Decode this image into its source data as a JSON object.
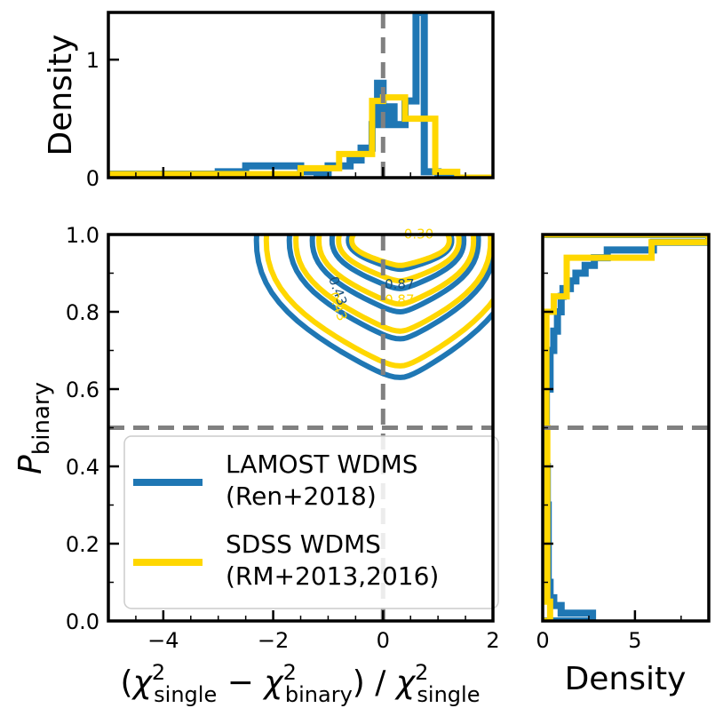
{
  "chart_data": [
    {
      "panel": "top-histogram",
      "type": "histogram",
      "xlim": [
        -5,
        2
      ],
      "ylim": [
        0,
        1.4
      ],
      "ylabel": "Density",
      "yticks": [
        0,
        1
      ],
      "ytick_labels": [
        "0",
        "1"
      ],
      "series": [
        {
          "name": "LAMOST WDMS (Ren+2018)",
          "color": "#1f77b4",
          "edges": [
            -5.0,
            -4.0,
            -3.0,
            -2.5,
            -1.5,
            -1.2,
            -1.0,
            -0.6,
            -0.4,
            -0.2,
            -0.1,
            0.0,
            0.1,
            0.2,
            0.4,
            0.6,
            0.75,
            1.0,
            1.4
          ],
          "density": [
            0.03,
            0.03,
            0.05,
            0.1,
            0.05,
            0.03,
            0.1,
            0.15,
            0.25,
            0.45,
            0.8,
            0.45,
            0.6,
            0.45,
            0.65,
            1.4,
            0.05,
            0.0
          ]
        },
        {
          "name": "SDSS WDMS (RM+2013,2016)",
          "color": "#ffd700",
          "edges": [
            -5.0,
            -1.5,
            -0.8,
            -0.2,
            0.0,
            0.4,
            0.95,
            1.35,
            2.0
          ],
          "density": [
            0.03,
            0.08,
            0.2,
            0.65,
            0.68,
            0.5,
            0.05,
            0.0
          ]
        }
      ],
      "vline": 0
    },
    {
      "panel": "main-contour",
      "type": "contour",
      "xlim": [
        -5,
        2
      ],
      "ylim": [
        0,
        1.0
      ],
      "xlabel": "(χ²_single − χ²_binary) / χ²_single",
      "ylabel": "P_binary",
      "xticks": [
        -4,
        -2,
        0,
        2
      ],
      "xtick_labels": [
        "−4",
        "−2",
        "0",
        "2"
      ],
      "yticks": [
        0.0,
        0.2,
        0.4,
        0.6,
        0.8,
        1.0
      ],
      "ytick_labels": [
        "0.0",
        "0.2",
        "0.4",
        "0.6",
        "0.8",
        "1.0"
      ],
      "hline": 0.5,
      "vline": 0,
      "series": [
        {
          "name": "LAMOST WDMS (Ren+2018)",
          "color": "#1f77b4",
          "contour_lowest_p": [
            0.63,
            0.73,
            0.8,
            0.86,
            0.91
          ],
          "contour_labels": [
            {
              "text": "0.43",
              "x": -0.9,
              "y": 0.85
            },
            {
              "text": "0.87",
              "x": 0.3,
              "y": 0.86
            }
          ]
        },
        {
          "name": "SDSS WDMS (RM+2013,2016)",
          "color": "#ffd700",
          "contour_lowest_p": [
            0.66,
            0.75,
            0.82,
            0.88,
            0.92
          ],
          "contour_labels": [
            {
              "text": "0.43",
              "x": -0.9,
              "y": 0.81
            },
            {
              "text": "0.87",
              "x": 0.3,
              "y": 0.82
            },
            {
              "text": "0.30",
              "x": 0.65,
              "y": 0.99
            }
          ]
        }
      ],
      "legend": {
        "placement": "lower-left",
        "entries": [
          {
            "line1": "LAMOST WDMS",
            "line2": "(Ren+2018)",
            "color": "#1f77b4"
          },
          {
            "line1": "SDSS WDMS",
            "line2": "(RM+2013,2016)",
            "color": "#ffd700"
          }
        ]
      }
    },
    {
      "panel": "right-histogram",
      "type": "histogram",
      "orientation": "horizontal",
      "xlim": [
        0,
        9
      ],
      "ylim": [
        0,
        1.0
      ],
      "xlabel": "Density",
      "xticks": [
        0,
        5
      ],
      "xtick_labels": [
        "0",
        "5"
      ],
      "hline": 0.5,
      "series": [
        {
          "name": "LAMOST WDMS (Ren+2018)",
          "color": "#1f77b4",
          "edges": [
            0.0,
            0.02,
            0.04,
            0.06,
            0.1,
            0.2,
            0.3,
            0.4,
            0.5,
            0.6,
            0.7,
            0.75,
            0.8,
            0.84,
            0.86,
            0.88,
            0.9,
            0.92,
            0.94,
            0.96,
            0.98,
            1.0
          ],
          "density": [
            2.7,
            1.0,
            0.6,
            0.4,
            0.3,
            0.3,
            0.25,
            0.2,
            0.2,
            0.4,
            0.6,
            0.8,
            1.0,
            1.1,
            1.5,
            1.8,
            2.3,
            2.8,
            3.5,
            6.0,
            9.0
          ]
        },
        {
          "name": "SDSS WDMS (RM+2013,2016)",
          "color": "#ffd700",
          "edges": [
            0.0,
            0.05,
            0.5,
            0.8,
            0.84,
            0.94,
            0.98,
            1.0
          ],
          "density": [
            0.4,
            0.25,
            0.2,
            0.6,
            1.3,
            5.9,
            9.0
          ]
        }
      ]
    }
  ]
}
